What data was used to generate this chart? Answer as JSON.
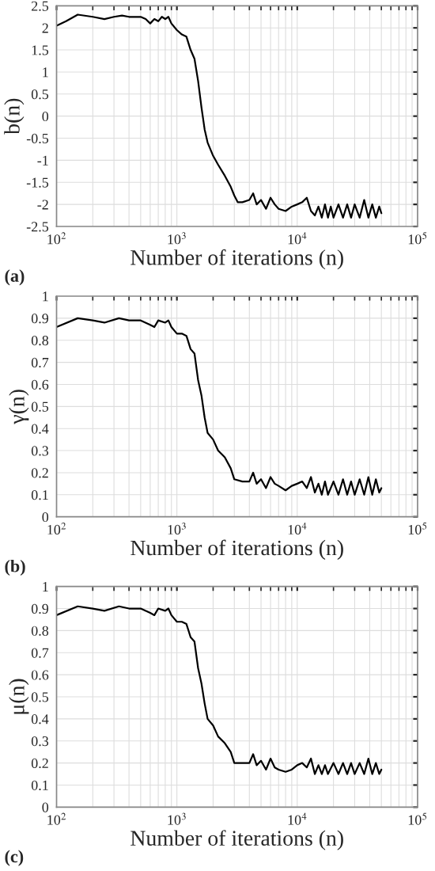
{
  "chart_data": [
    {
      "type": "line",
      "xlabel": "Number of iterations (n)",
      "ylabel": "b(n)",
      "log": "x",
      "grid": true,
      "annotations": [
        "(a)"
      ],
      "xlim": [
        100,
        100000
      ],
      "xticks": [
        {
          "value": 100,
          "label": "10$^{2}$"
        },
        {
          "value": 1000,
          "label": "10$^{3}$"
        },
        {
          "value": 10000,
          "label": "10$^{4}$"
        },
        {
          "value": 100000,
          "label": "10$^{5}$"
        }
      ],
      "ylim": [
        -2.5,
        2.5
      ],
      "yticks": [
        -2.5,
        -2,
        -1.5,
        -1,
        -0.5,
        0,
        0.5,
        1,
        1.5,
        2,
        2.5
      ],
      "series": [
        {
          "color": "#000000",
          "x": [
            100,
            120,
            150,
            200,
            250,
            300,
            350,
            400,
            500,
            550,
            600,
            650,
            700,
            750,
            800,
            850,
            900,
            1000,
            1100,
            1200,
            1300,
            1400,
            1500,
            1600,
            1700,
            1800,
            2000,
            2200,
            2500,
            2800,
            3000,
            3200,
            3500,
            4000,
            4300,
            4600,
            5000,
            5500,
            6000,
            6500,
            7000,
            8000,
            9000,
            10000,
            11000,
            12000,
            13000,
            14000,
            15000,
            16000,
            17000,
            18000,
            19000,
            20000,
            22000,
            24000,
            26000,
            28000,
            30000,
            33000,
            36000,
            39000,
            42000,
            45000,
            48000,
            50000
          ],
          "values": [
            2.05,
            2.15,
            2.3,
            2.25,
            2.2,
            2.25,
            2.28,
            2.25,
            2.25,
            2.2,
            2.1,
            2.2,
            2.15,
            2.25,
            2.2,
            2.25,
            2.1,
            1.95,
            1.85,
            1.8,
            1.5,
            1.3,
            0.8,
            0.2,
            -0.3,
            -0.6,
            -0.9,
            -1.1,
            -1.35,
            -1.6,
            -1.8,
            -1.95,
            -1.95,
            -1.9,
            -1.75,
            -2.0,
            -1.9,
            -2.1,
            -1.85,
            -2.0,
            -2.1,
            -2.15,
            -2.05,
            -2.0,
            -1.95,
            -1.85,
            -2.15,
            -2.25,
            -2.05,
            -2.3,
            -2.0,
            -2.3,
            -2.05,
            -2.3,
            -2.0,
            -2.3,
            -2.0,
            -2.3,
            -2.0,
            -2.3,
            -1.9,
            -2.3,
            -2.0,
            -2.3,
            -2.05,
            -2.2
          ]
        }
      ]
    },
    {
      "type": "line",
      "xlabel": "Number of iterations (n)",
      "ylabel": "γ(n)",
      "log": "x",
      "grid": true,
      "annotations": [
        "(b)"
      ],
      "xlim": [
        100,
        100000
      ],
      "xticks": [
        {
          "value": 100,
          "label": "10$^{2}$"
        },
        {
          "value": 1000,
          "label": "10$^{3}$"
        },
        {
          "value": 10000,
          "label": "10$^{4}$"
        },
        {
          "value": 100000,
          "label": "10$^{5}$"
        }
      ],
      "ylim": [
        0,
        1
      ],
      "yticks": [
        0,
        0.1,
        0.2,
        0.3,
        0.4,
        0.5,
        0.6,
        0.7,
        0.8,
        0.9,
        1
      ],
      "series": [
        {
          "color": "#000000",
          "x": [
            100,
            150,
            200,
            250,
            330,
            400,
            500,
            600,
            650,
            700,
            800,
            850,
            900,
            1000,
            1100,
            1200,
            1300,
            1400,
            1500,
            1600,
            1700,
            1800,
            2000,
            2200,
            2500,
            2800,
            3000,
            3500,
            4000,
            4300,
            4600,
            5000,
            5500,
            6000,
            6500,
            7000,
            8000,
            9000,
            10000,
            11000,
            12000,
            13000,
            14000,
            15000,
            16000,
            17000,
            18000,
            20000,
            22000,
            24000,
            26000,
            28000,
            30000,
            33000,
            36000,
            39000,
            42000,
            45000,
            48000,
            50000
          ],
          "values": [
            0.86,
            0.9,
            0.89,
            0.88,
            0.9,
            0.89,
            0.89,
            0.87,
            0.86,
            0.89,
            0.88,
            0.89,
            0.86,
            0.83,
            0.83,
            0.82,
            0.76,
            0.74,
            0.62,
            0.55,
            0.45,
            0.38,
            0.35,
            0.3,
            0.27,
            0.22,
            0.17,
            0.16,
            0.16,
            0.2,
            0.15,
            0.17,
            0.13,
            0.18,
            0.15,
            0.14,
            0.12,
            0.14,
            0.15,
            0.16,
            0.13,
            0.18,
            0.11,
            0.15,
            0.1,
            0.16,
            0.1,
            0.16,
            0.1,
            0.17,
            0.1,
            0.16,
            0.1,
            0.17,
            0.1,
            0.18,
            0.1,
            0.17,
            0.11,
            0.13
          ]
        }
      ]
    },
    {
      "type": "line",
      "xlabel": "Number of iterations (n)",
      "ylabel": "μ(n)",
      "log": "x",
      "grid": true,
      "annotations": [
        "(c)"
      ],
      "xlim": [
        100,
        100000
      ],
      "xticks": [
        {
          "value": 100,
          "label": "10$^{2}$"
        },
        {
          "value": 1000,
          "label": "10$^{3}$"
        },
        {
          "value": 10000,
          "label": "10$^{4}$"
        },
        {
          "value": 100000,
          "label": "10$^{5}$"
        }
      ],
      "ylim": [
        0,
        1
      ],
      "yticks": [
        0,
        0.1,
        0.2,
        0.3,
        0.4,
        0.5,
        0.6,
        0.7,
        0.8,
        0.9,
        1
      ],
      "series": [
        {
          "color": "#000000",
          "x": [
            100,
            150,
            200,
            250,
            330,
            400,
            500,
            600,
            650,
            700,
            800,
            850,
            900,
            1000,
            1100,
            1200,
            1300,
            1400,
            1500,
            1600,
            1700,
            1800,
            2000,
            2200,
            2500,
            2800,
            3000,
            3500,
            4000,
            4300,
            4600,
            5000,
            5500,
            6000,
            6500,
            7000,
            8000,
            9000,
            10000,
            11000,
            12000,
            13000,
            14000,
            15000,
            16000,
            17000,
            18000,
            20000,
            22000,
            24000,
            26000,
            28000,
            30000,
            33000,
            36000,
            39000,
            42000,
            45000,
            48000,
            50000
          ],
          "values": [
            0.87,
            0.91,
            0.9,
            0.89,
            0.91,
            0.9,
            0.9,
            0.88,
            0.87,
            0.9,
            0.89,
            0.9,
            0.87,
            0.84,
            0.84,
            0.83,
            0.77,
            0.75,
            0.63,
            0.56,
            0.47,
            0.4,
            0.37,
            0.32,
            0.29,
            0.25,
            0.2,
            0.2,
            0.2,
            0.24,
            0.19,
            0.21,
            0.17,
            0.22,
            0.18,
            0.17,
            0.16,
            0.17,
            0.19,
            0.2,
            0.18,
            0.22,
            0.15,
            0.19,
            0.15,
            0.19,
            0.15,
            0.2,
            0.15,
            0.2,
            0.15,
            0.2,
            0.15,
            0.2,
            0.15,
            0.22,
            0.15,
            0.2,
            0.15,
            0.17
          ]
        }
      ]
    }
  ]
}
